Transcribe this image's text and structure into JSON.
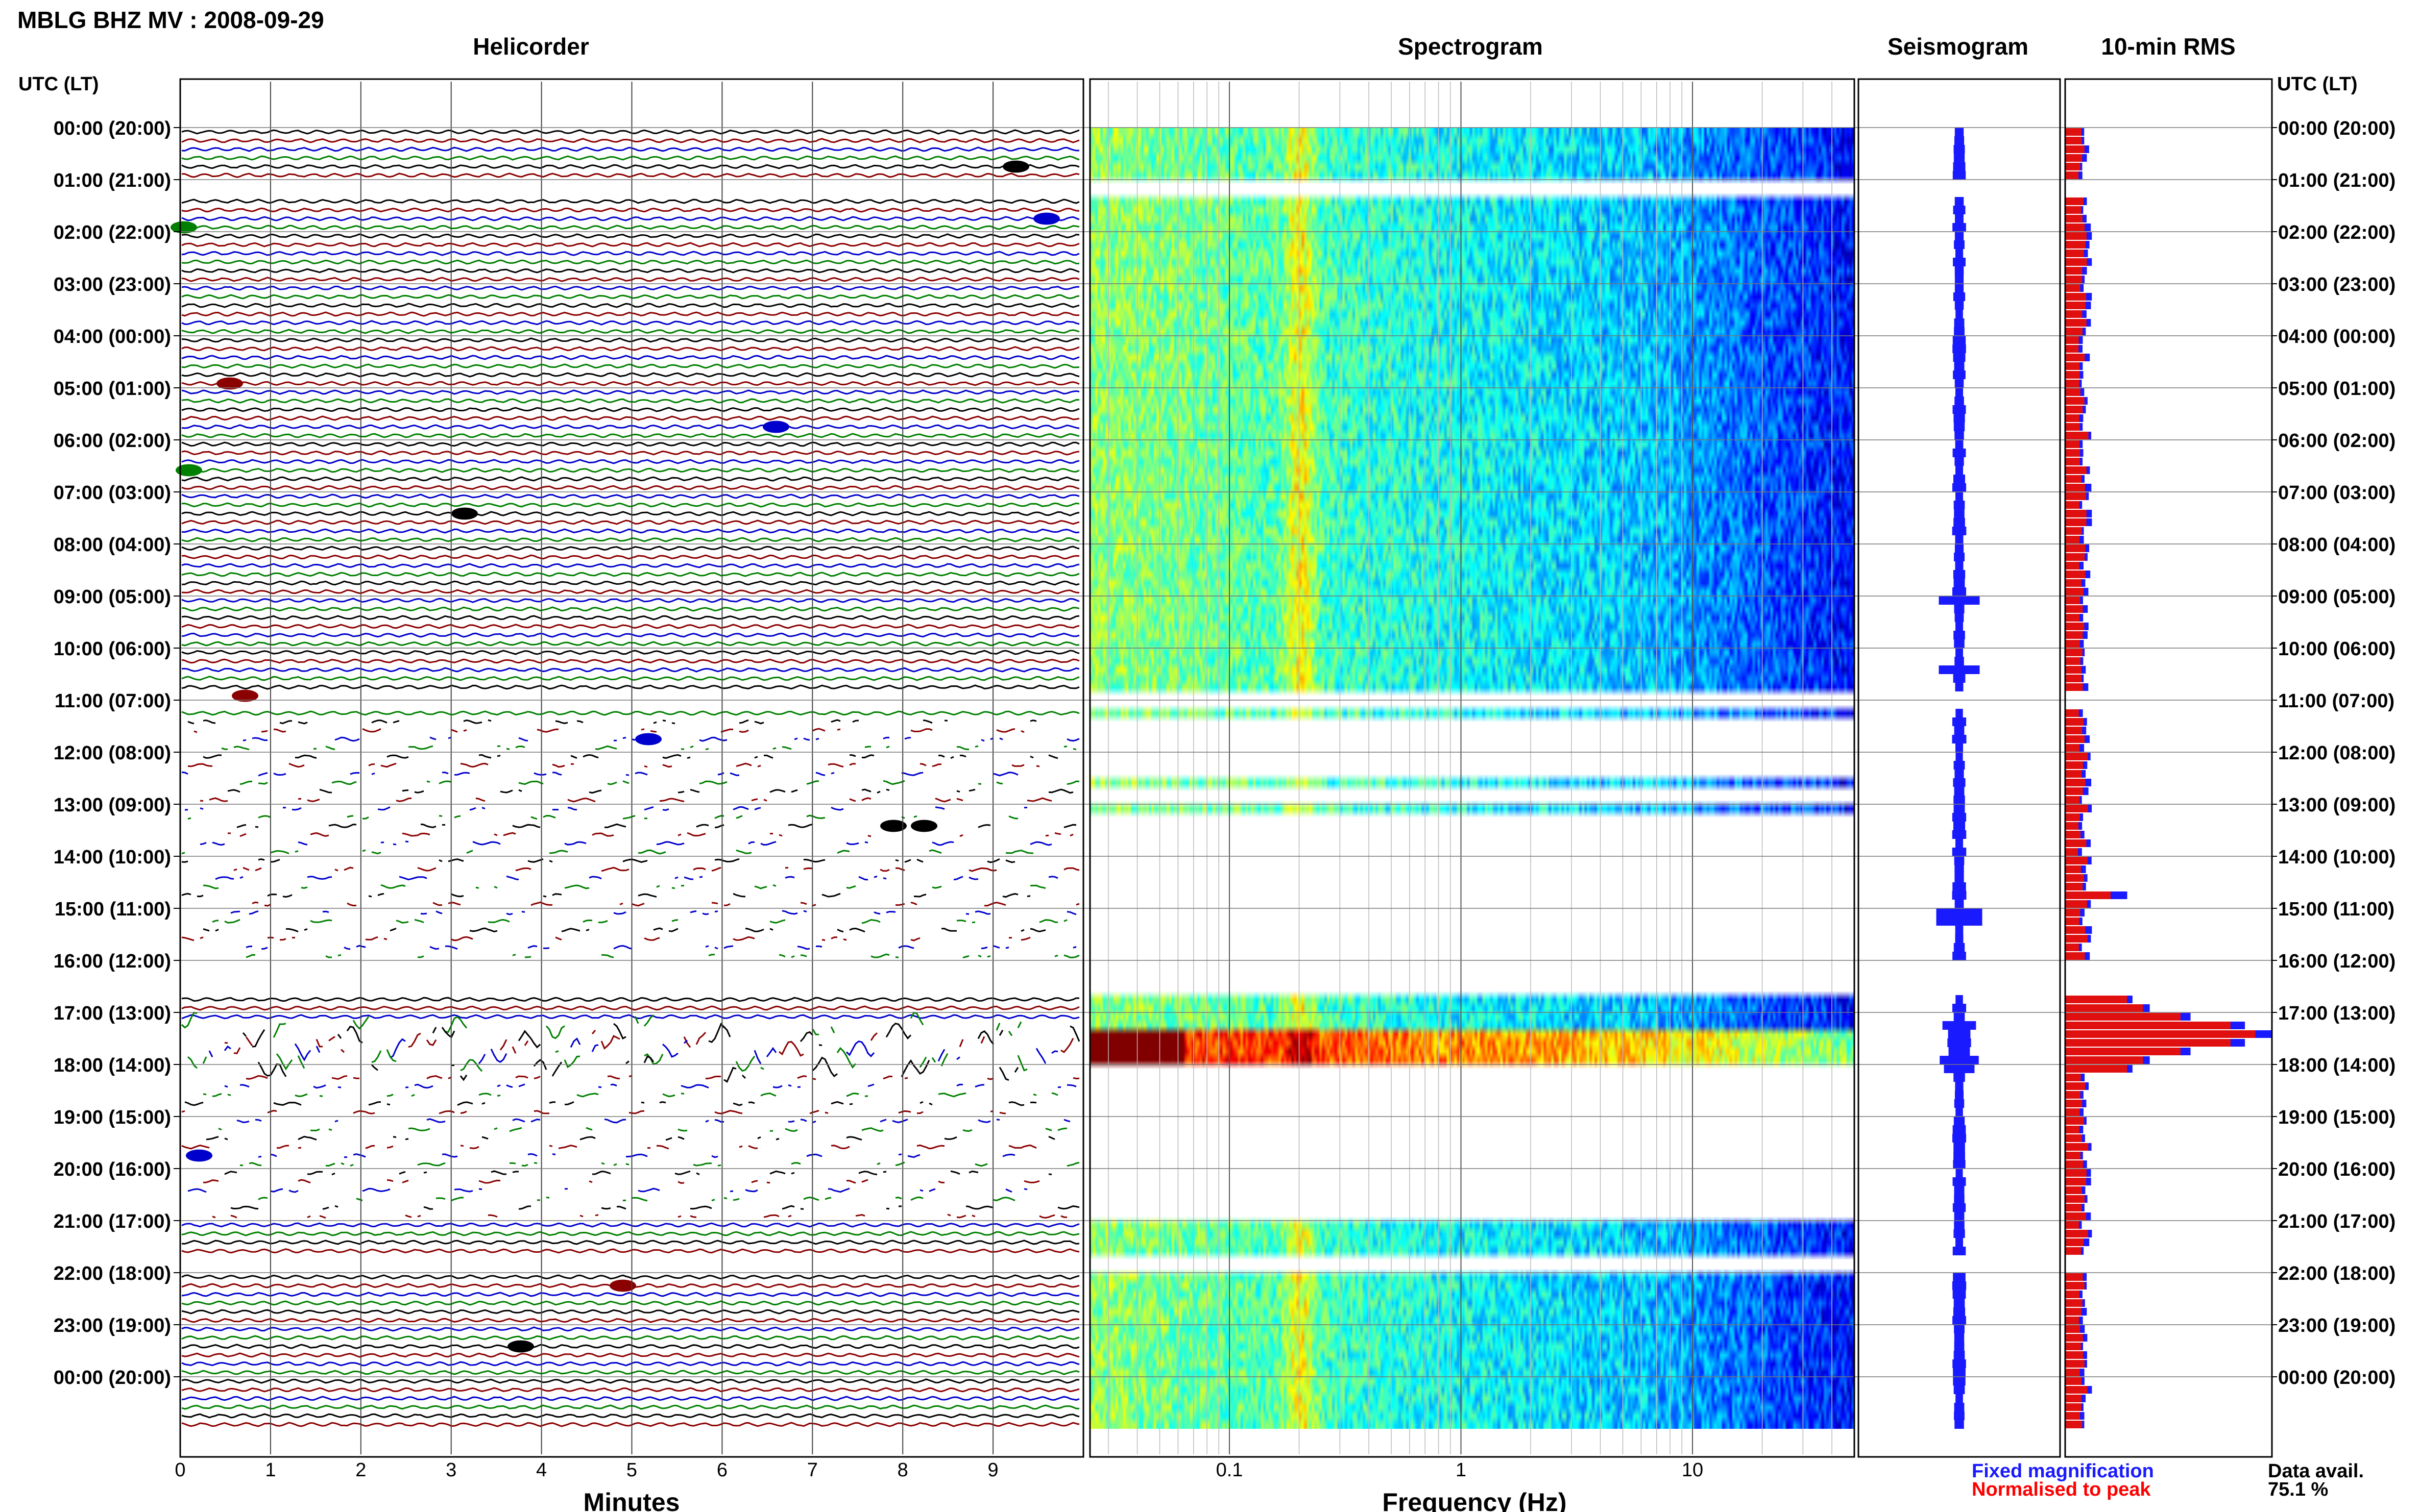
{
  "header": {
    "title": "MBLG BHZ MV : 2008-09-29"
  },
  "panels": {
    "helicorder": "Helicorder",
    "spectrogram": "Spectrogram",
    "seismogram": "Seismogram",
    "rms": "10-min RMS"
  },
  "axes": {
    "left_header": "UTC (LT)",
    "right_header": "UTC (LT)",
    "minutes_label": "Minutes",
    "minutes_ticks": [
      "0",
      "1",
      "2",
      "3",
      "4",
      "5",
      "6",
      "7",
      "8",
      "9"
    ],
    "frequency_label": "Frequency (Hz)",
    "frequency_ticks": [
      "0.1",
      "1",
      "10"
    ]
  },
  "hour_labels": [
    "00:00 (20:00)",
    "01:00 (21:00)",
    "02:00 (22:00)",
    "03:00 (23:00)",
    "04:00 (00:00)",
    "05:00 (01:00)",
    "06:00 (02:00)",
    "07:00 (03:00)",
    "08:00 (04:00)",
    "09:00 (05:00)",
    "10:00 (06:00)",
    "11:00 (07:00)",
    "12:00 (08:00)",
    "13:00 (09:00)",
    "14:00 (10:00)",
    "15:00 (11:00)",
    "16:00 (12:00)",
    "17:00 (13:00)",
    "18:00 (14:00)",
    "19:00 (15:00)",
    "20:00 (16:00)",
    "21:00 (17:00)",
    "22:00 (18:00)",
    "23:00 (19:00)",
    "00:00 (20:00)"
  ],
  "legend": {
    "fixed": "Fixed magnification",
    "normalised": "Normalised to peak",
    "data_avail_label": "Data avail.",
    "data_avail_value": "75.1 %"
  },
  "colors": {
    "fixed": "#1a1aff",
    "normalised": "#ff0000",
    "trace_cycle": [
      "#000000",
      "#8b0000",
      "#0000cd",
      "#008000"
    ]
  },
  "chart_data": {
    "type": "helicorder",
    "rows_per_hour": 6,
    "row_minutes": 10,
    "data_gaps_10min_rows": [
      [
        6,
        7
      ],
      [
        65,
        66
      ],
      [
        96,
        99
      ],
      [
        130,
        131
      ]
    ],
    "rms_normalised_peak_hour": 17.4,
    "spectrogram_frequency_range_hz": [
      0.025,
      50
    ],
    "spectrogram_scale": "log"
  }
}
